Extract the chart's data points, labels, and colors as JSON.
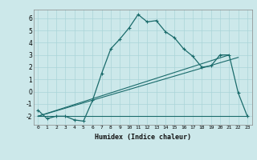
{
  "title": "",
  "xlabel": "Humidex (Indice chaleur)",
  "ylabel": "",
  "bg_color": "#cce8ea",
  "grid_color": "#aad4d8",
  "line_color": "#1a6b6b",
  "xlim": [
    -0.5,
    23.5
  ],
  "ylim": [
    -2.7,
    6.7
  ],
  "xticks": [
    0,
    1,
    2,
    3,
    4,
    5,
    6,
    7,
    8,
    9,
    10,
    11,
    12,
    13,
    14,
    15,
    16,
    17,
    18,
    19,
    20,
    21,
    22,
    23
  ],
  "yticks": [
    -2,
    -1,
    0,
    1,
    2,
    3,
    4,
    5,
    6
  ],
  "curve_main": [
    [
      0,
      -1.5
    ],
    [
      1,
      -2.2
    ],
    [
      2,
      -2.0
    ],
    [
      3,
      -2.0
    ],
    [
      4,
      -2.3
    ],
    [
      5,
      -2.4
    ],
    [
      6,
      -0.7
    ],
    [
      7,
      1.5
    ],
    [
      8,
      3.5
    ],
    [
      9,
      4.3
    ],
    [
      10,
      5.2
    ],
    [
      11,
      6.3
    ],
    [
      12,
      5.7
    ],
    [
      13,
      5.8
    ],
    [
      14,
      4.9
    ],
    [
      15,
      4.4
    ],
    [
      16,
      3.5
    ],
    [
      17,
      2.9
    ],
    [
      18,
      2.0
    ],
    [
      19,
      2.1
    ],
    [
      20,
      3.0
    ],
    [
      21,
      3.0
    ],
    [
      22,
      -0.1
    ],
    [
      23,
      -2.0
    ]
  ],
  "curve_linear1": [
    [
      0,
      -2.0
    ],
    [
      23,
      -2.0
    ]
  ],
  "curve_linear2": [
    [
      0,
      -2.0
    ],
    [
      21,
      3.0
    ]
  ],
  "curve_linear3": [
    [
      0,
      -2.0
    ],
    [
      22,
      2.8
    ]
  ],
  "figsize": [
    3.2,
    2.0
  ],
  "dpi": 100
}
